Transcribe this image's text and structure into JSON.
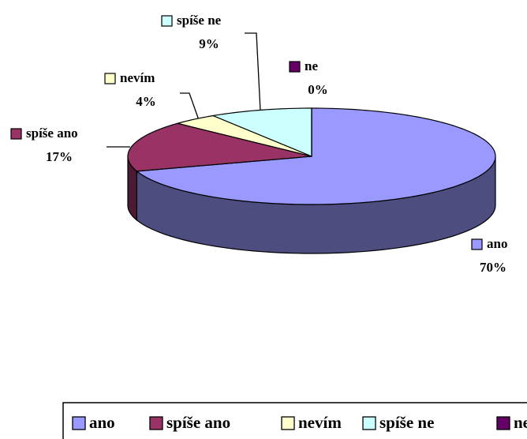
{
  "chart_data": {
    "type": "pie3d",
    "categories": [
      "ano",
      "spíše ano",
      "nevím",
      "spíše ne",
      "ne"
    ],
    "values": [
      70,
      17,
      4,
      9,
      0
    ],
    "value_labels": [
      "70%",
      "17%",
      "4%",
      "9%",
      "0%"
    ],
    "colors": [
      "#9999ff",
      "#993366",
      "#ffffcc",
      "#ccffff",
      "#660066"
    ],
    "legend": "bottom"
  }
}
